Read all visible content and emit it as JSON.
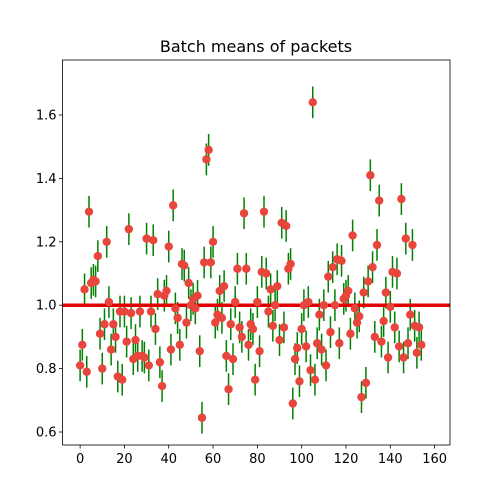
{
  "chart_data": {
    "type": "errorbar",
    "title": "Batch means of packets",
    "x": [
      0,
      1,
      2,
      3,
      4,
      5,
      6,
      7,
      8,
      9,
      10,
      11,
      12,
      13,
      14,
      15,
      16,
      17,
      18,
      19,
      20,
      21,
      22,
      23,
      24,
      25,
      26,
      27,
      28,
      29,
      30,
      31,
      32,
      33,
      34,
      35,
      36,
      37,
      38,
      39,
      40,
      41,
      42,
      43,
      44,
      45,
      46,
      47,
      48,
      49,
      50,
      51,
      52,
      53,
      54,
      55,
      56,
      57,
      58,
      59,
      60,
      61,
      62,
      63,
      64,
      65,
      66,
      67,
      68,
      69,
      70,
      71,
      72,
      73,
      74,
      75,
      76,
      77,
      78,
      79,
      80,
      81,
      82,
      83,
      84,
      85,
      86,
      87,
      88,
      89,
      90,
      91,
      92,
      93,
      94,
      95,
      96,
      97,
      98,
      99,
      100,
      101,
      102,
      103,
      104,
      105,
      106,
      107,
      108,
      109,
      110,
      111,
      112,
      113,
      114,
      115,
      116,
      117,
      118,
      119,
      120,
      121,
      122,
      123,
      124,
      125,
      126,
      127,
      128,
      129,
      130,
      131,
      132,
      133,
      134,
      135,
      136,
      137,
      138,
      139,
      140,
      141,
      142,
      143,
      144,
      145,
      146,
      147,
      148,
      149,
      150,
      151,
      152,
      153,
      154
    ],
    "series": [
      {
        "color": "#e8453c",
        "errcolor": "#008000",
        "values": [
          0.81,
          0.875,
          1.05,
          0.79,
          1.295,
          1.07,
          1.08,
          1.075,
          1.155,
          0.91,
          0.8,
          0.94,
          1.2,
          1.01,
          0.86,
          0.94,
          0.9,
          0.775,
          0.98,
          0.765,
          0.98,
          0.885,
          1.24,
          0.975,
          0.83,
          0.89,
          0.84,
          0.98,
          0.84,
          0.835,
          1.21,
          0.81,
          0.98,
          1.205,
          0.925,
          1.035,
          0.82,
          0.745,
          1.03,
          1.045,
          1.185,
          0.86,
          1.315,
          0.99,
          0.96,
          0.875,
          1.13,
          1.125,
          0.945,
          1.07,
          1.0,
          1.02,
          0.99,
          1.03,
          0.855,
          0.645,
          1.135,
          1.46,
          1.49,
          1.135,
          1.2,
          0.945,
          0.97,
          1.045,
          0.96,
          1.06,
          0.84,
          0.735,
          0.94,
          0.83,
          1.01,
          1.115,
          0.93,
          0.9,
          1.29,
          1.115,
          0.875,
          0.94,
          0.925,
          0.765,
          1.01,
          0.855,
          1.105,
          1.295,
          1.1,
          0.98,
          1.05,
          0.935,
          1.0,
          1.06,
          0.89,
          1.26,
          0.93,
          1.25,
          1.115,
          1.13,
          0.69,
          0.83,
          0.865,
          0.76,
          0.925,
          1.0,
          0.87,
          1.01,
          0.795,
          1.64,
          0.765,
          0.88,
          0.97,
          0.86,
          1.0,
          0.81,
          1.09,
          0.915,
          1.12,
          1.0,
          1.145,
          0.88,
          1.14,
          1.02,
          1.03,
          1.045,
          0.91,
          1.22,
          0.99,
          0.945,
          0.965,
          0.71,
          1.04,
          0.755,
          1.075,
          1.41,
          1.12,
          0.9,
          1.19,
          1.33,
          0.885,
          0.95,
          1.04,
          0.835,
          0.995,
          1.105,
          0.93,
          1.1,
          0.87,
          1.335,
          0.835,
          1.21,
          0.88,
          0.97,
          1.19,
          0.935,
          0.85,
          0.93,
          0.875
        ]
      }
    ],
    "yerr": 0.05,
    "hline": 1,
    "hline_color": "#e00000",
    "xlim": [
      -7.95,
      166.95
    ],
    "ylim": [
      0.559,
      1.7735
    ],
    "xticks": [
      0,
      20,
      40,
      60,
      80,
      100,
      120,
      140,
      160
    ],
    "yticks": [
      0.6,
      0.8,
      {
        "value": 1,
        "label": "1.0"
      },
      1.2,
      1.4,
      1.6
    ]
  }
}
